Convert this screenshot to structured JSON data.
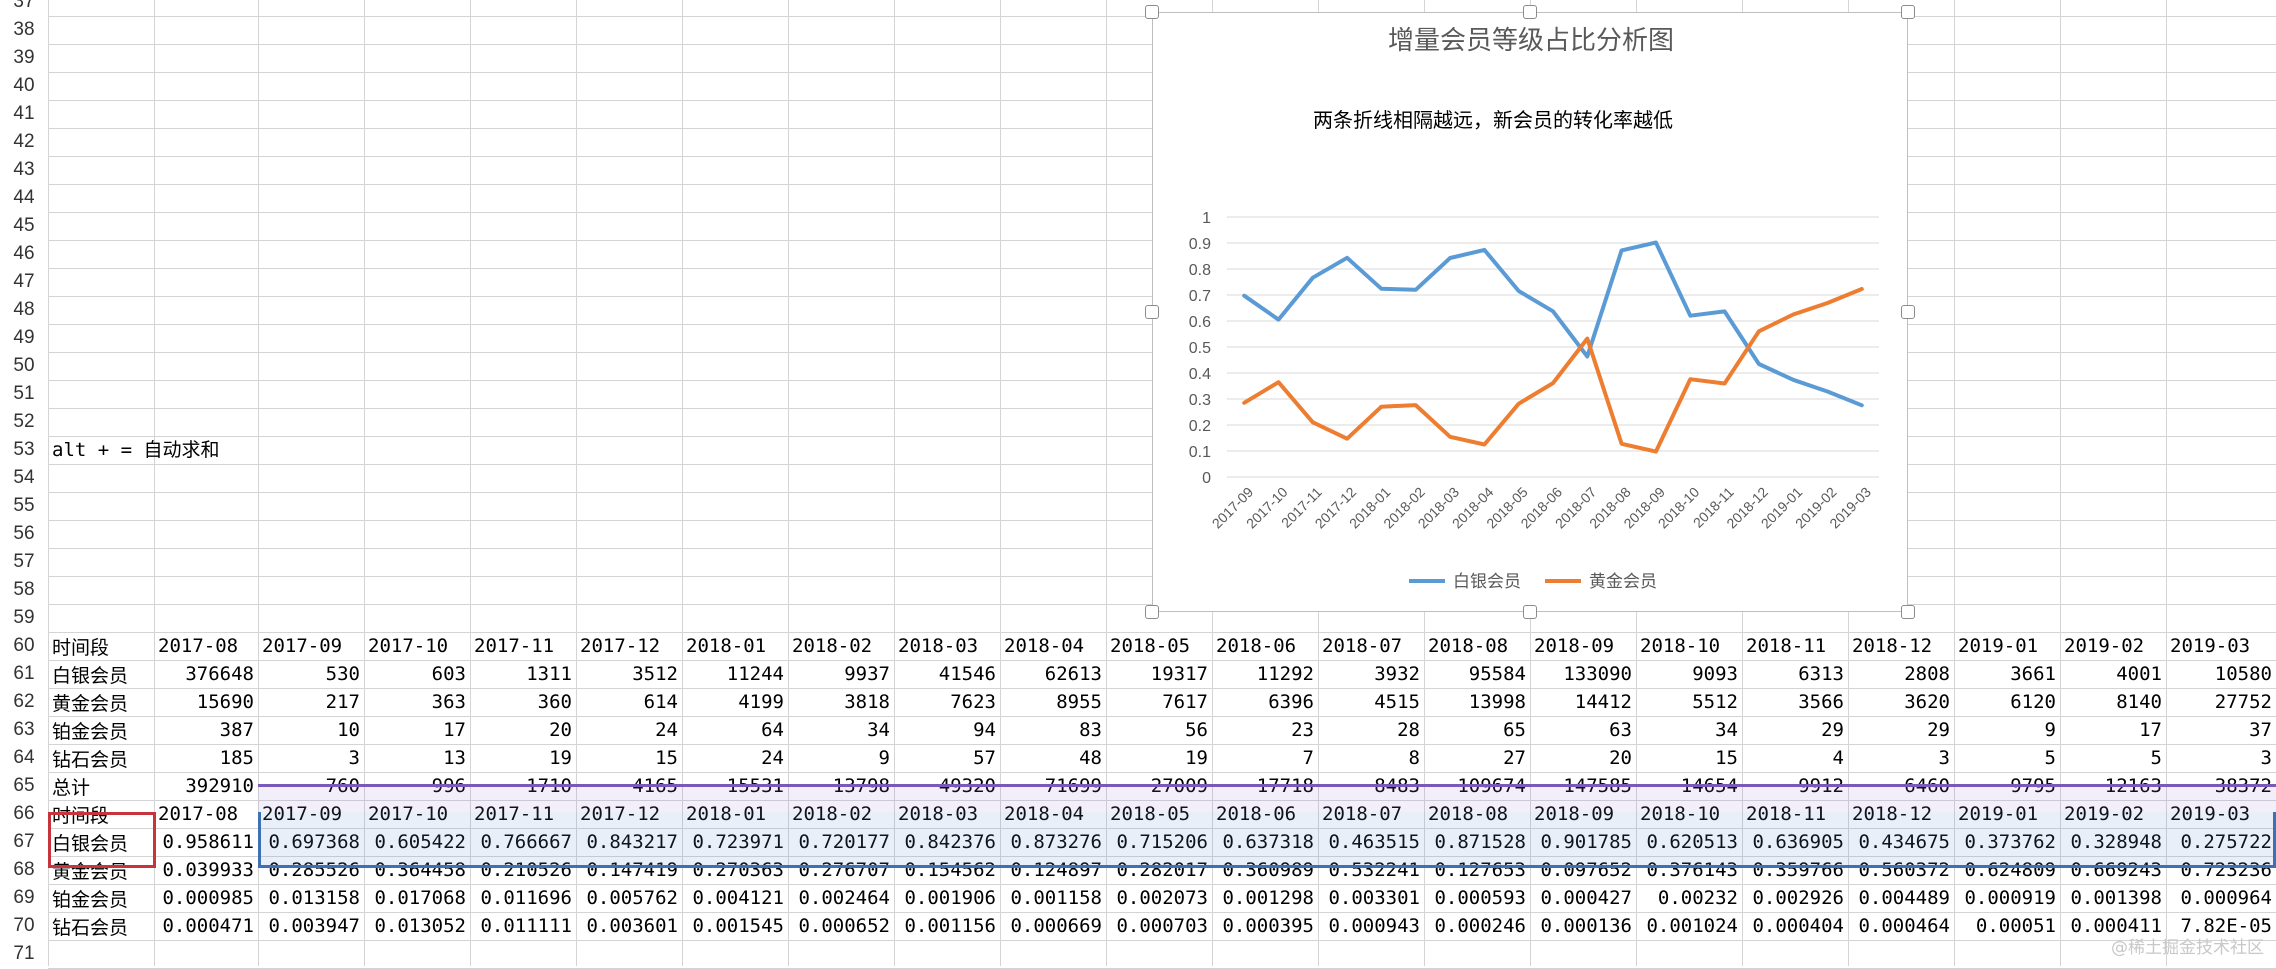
{
  "row_numbers": [
    "37",
    "38",
    "39",
    "40",
    "41",
    "42",
    "43",
    "44",
    "45",
    "46",
    "47",
    "48",
    "49",
    "50",
    "51",
    "52",
    "53",
    "54",
    "55",
    "56",
    "57",
    "58",
    "59",
    "60",
    "61",
    "62",
    "63",
    "64",
    "65",
    "66",
    "67",
    "68",
    "69",
    "70",
    "71"
  ],
  "note": "alt + = 自动求和",
  "table1": {
    "header": [
      "时间段",
      "2017-08",
      "2017-09",
      "2017-10",
      "2017-11",
      "2017-12",
      "2018-01",
      "2018-02",
      "2018-03",
      "2018-04",
      "2018-05",
      "2018-06",
      "2018-07",
      "2018-08",
      "2018-09",
      "2018-10",
      "2018-11",
      "2018-12",
      "2019-01",
      "2019-02",
      "2019-03"
    ],
    "rows": [
      [
        "白银会员",
        "376648",
        "530",
        "603",
        "1311",
        "3512",
        "11244",
        "9937",
        "41546",
        "62613",
        "19317",
        "11292",
        "3932",
        "95584",
        "133090",
        "9093",
        "6313",
        "2808",
        "3661",
        "4001",
        "10580"
      ],
      [
        "黄金会员",
        "15690",
        "217",
        "363",
        "360",
        "614",
        "4199",
        "3818",
        "7623",
        "8955",
        "7617",
        "6396",
        "4515",
        "13998",
        "14412",
        "5512",
        "3566",
        "3620",
        "6120",
        "8140",
        "27752"
      ],
      [
        "铂金会员",
        "387",
        "10",
        "17",
        "20",
        "24",
        "64",
        "34",
        "94",
        "83",
        "56",
        "23",
        "28",
        "65",
        "63",
        "34",
        "29",
        "29",
        "9",
        "17",
        "37"
      ],
      [
        "钻石会员",
        "185",
        "3",
        "13",
        "19",
        "15",
        "24",
        "9",
        "57",
        "48",
        "19",
        "7",
        "8",
        "27",
        "20",
        "15",
        "4",
        "3",
        "5",
        "5",
        "3"
      ],
      [
        "总计",
        "392910",
        "760",
        "996",
        "1710",
        "4165",
        "15531",
        "13798",
        "49320",
        "71699",
        "27009",
        "17718",
        "8483",
        "109674",
        "147585",
        "14654",
        "9912",
        "6460",
        "9795",
        "12163",
        "38372"
      ]
    ]
  },
  "table2": {
    "header": [
      "时间段",
      "2017-08",
      "2017-09",
      "2017-10",
      "2017-11",
      "2017-12",
      "2018-01",
      "2018-02",
      "2018-03",
      "2018-04",
      "2018-05",
      "2018-06",
      "2018-07",
      "2018-08",
      "2018-09",
      "2018-10",
      "2018-11",
      "2018-12",
      "2019-01",
      "2019-02",
      "2019-03"
    ],
    "rows": [
      [
        "白银会员",
        "0.958611",
        "0.697368",
        "0.605422",
        "0.766667",
        "0.843217",
        "0.723971",
        "0.720177",
        "0.842376",
        "0.873276",
        "0.715206",
        "0.637318",
        "0.463515",
        "0.871528",
        "0.901785",
        "0.620513",
        "0.636905",
        "0.434675",
        "0.373762",
        "0.328948",
        "0.275722"
      ],
      [
        "黄金会员",
        "0.039933",
        "0.285526",
        "0.364458",
        "0.210526",
        "0.147419",
        "0.270363",
        "0.276707",
        "0.154562",
        "0.124897",
        "0.282017",
        "0.360989",
        "0.532241",
        "0.127653",
        "0.097652",
        "0.376143",
        "0.359766",
        "0.560372",
        "0.624809",
        "0.669243",
        "0.723236"
      ],
      [
        "铂金会员",
        "0.000985",
        "0.013158",
        "0.017068",
        "0.011696",
        "0.005762",
        "0.004121",
        "0.002464",
        "0.001906",
        "0.001158",
        "0.002073",
        "0.001298",
        "0.003301",
        "0.000593",
        "0.000427",
        "0.00232",
        "0.002926",
        "0.004489",
        "0.000919",
        "0.001398",
        "0.000964"
      ],
      [
        "钻石会员",
        "0.000471",
        "0.003947",
        "0.013052",
        "0.011111",
        "0.003601",
        "0.001545",
        "0.000652",
        "0.001156",
        "0.000669",
        "0.000703",
        "0.000395",
        "0.000943",
        "0.000246",
        "0.000136",
        "0.001024",
        "0.000404",
        "0.000464",
        "0.00051",
        "0.000411",
        "7.82E-05"
      ]
    ]
  },
  "chart_data": {
    "type": "line",
    "title": "增量会员等级占比分析图",
    "subtitle": "两条折线相隔越远，新会员的转化率越低",
    "categories": [
      "2017-09",
      "2017-10",
      "2017-11",
      "2017-12",
      "2018-01",
      "2018-02",
      "2018-03",
      "2018-04",
      "2018-05",
      "2018-06",
      "2018-07",
      "2018-08",
      "2018-09",
      "2018-10",
      "2018-11",
      "2018-12",
      "2019-01",
      "2019-02",
      "2019-03"
    ],
    "yticks": [
      "0",
      "0.1",
      "0.2",
      "0.3",
      "0.4",
      "0.5",
      "0.6",
      "0.7",
      "0.8",
      "0.9",
      "1"
    ],
    "ylim": [
      0,
      1
    ],
    "grid": true,
    "legend_position": "bottom",
    "series": [
      {
        "name": "白银会员",
        "color": "#5b9bd5",
        "values": [
          0.697368,
          0.605422,
          0.766667,
          0.843217,
          0.723971,
          0.720177,
          0.842376,
          0.873276,
          0.715206,
          0.637318,
          0.463515,
          0.871528,
          0.901785,
          0.620513,
          0.636905,
          0.434675,
          0.373762,
          0.328948,
          0.275722
        ]
      },
      {
        "name": "黄金会员",
        "color": "#ed7d31",
        "values": [
          0.285526,
          0.364458,
          0.210526,
          0.147419,
          0.270363,
          0.276707,
          0.154562,
          0.124897,
          0.282017,
          0.360989,
          0.532241,
          0.127653,
          0.097652,
          0.376143,
          0.359766,
          0.560372,
          0.624809,
          0.669243,
          0.723236
        ]
      }
    ]
  },
  "colors": {
    "grid": "#d4d4d4",
    "selection_purple": "#7a5ab8",
    "selection_blue": "#3f6fb5",
    "selection_red": "#c8343c"
  },
  "watermark": "@稀土掘金技术社区"
}
